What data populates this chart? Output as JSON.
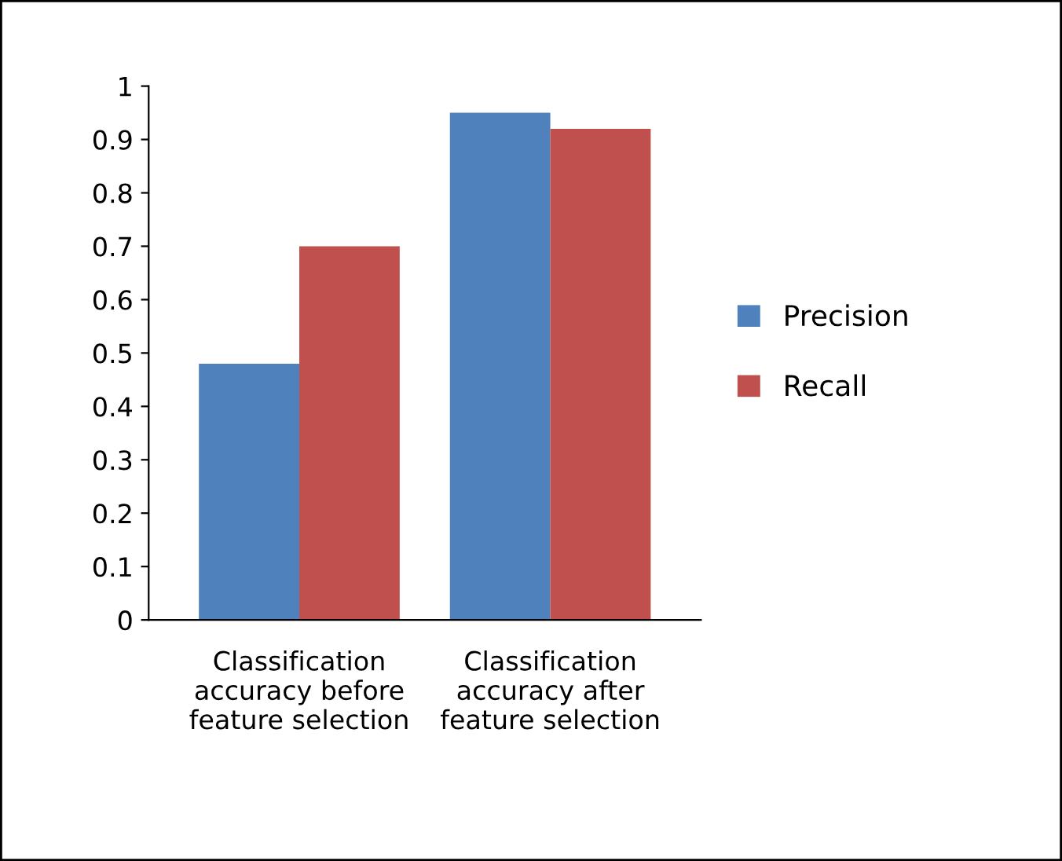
{
  "chart_data": {
    "type": "bar",
    "categories": [
      "Classification\naccuracy before\nfeature selection",
      "Classification\naccuracy after\nfeature selection"
    ],
    "series": [
      {
        "name": "Precision",
        "color": "#4f81bd",
        "values": [
          0.48,
          0.95
        ]
      },
      {
        "name": "Recall",
        "color": "#c0504d",
        "values": [
          0.7,
          0.92
        ]
      }
    ],
    "ylim": [
      0,
      1
    ],
    "yticks": [
      0,
      0.1,
      0.2,
      0.3,
      0.4,
      0.5,
      0.6,
      0.7,
      0.8,
      0.9,
      1
    ],
    "grid": false,
    "legend": "right"
  }
}
